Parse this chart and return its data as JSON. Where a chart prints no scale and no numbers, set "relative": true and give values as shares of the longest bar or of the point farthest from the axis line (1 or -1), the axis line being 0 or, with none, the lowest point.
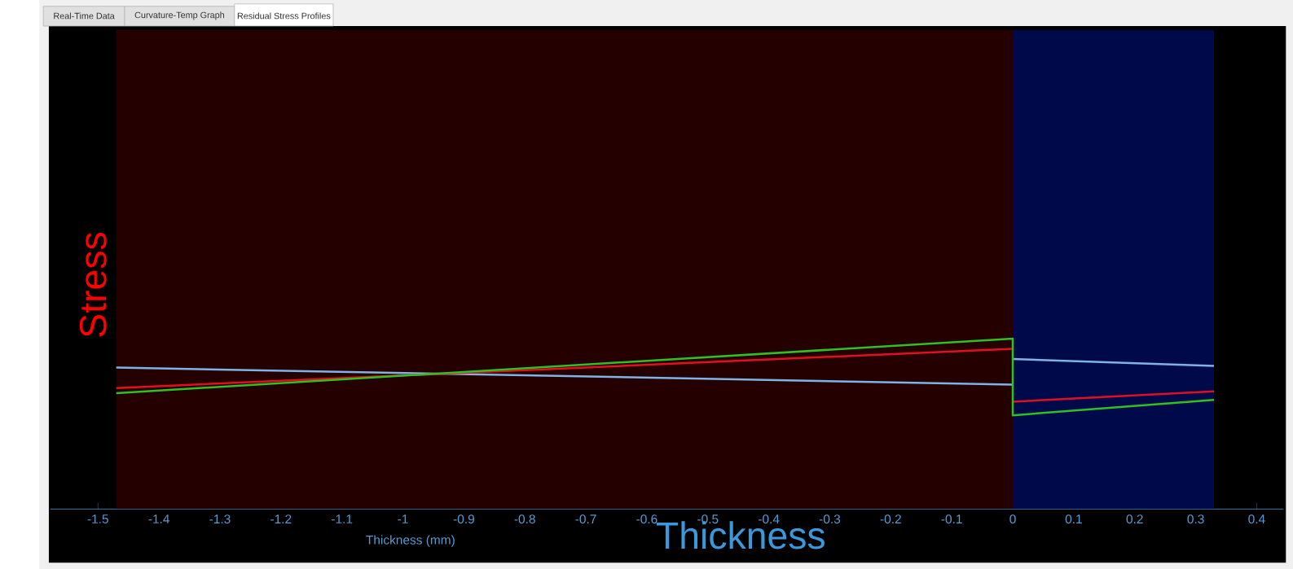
{
  "chart_data": {
    "type": "line",
    "xlabel": "Thickness (mm)",
    "ylabel": "Stress",
    "annotations": [
      "Real-Time Data",
      "Curvature-Temp Graph",
      "Residual Stress Profiles",
      "Thickness"
    ],
    "relative": true,
    "xlim": [
      -1.578,
      0.444
    ],
    "xticks": [
      -1.5,
      -1.4,
      -1.3,
      -1.2,
      -1.1,
      -1,
      -0.9,
      -0.8,
      -0.7,
      -0.6,
      -0.5,
      -0.4,
      -0.3,
      -0.2,
      -0.1,
      0,
      0.1,
      0.2,
      0.3,
      0.4
    ],
    "bands": [
      {
        "axis": "x",
        "from": -1.47,
        "to": 0,
        "color": "#240000"
      },
      {
        "axis": "x",
        "from": 0,
        "to": 0.33,
        "color": "#000a4a"
      }
    ],
    "series": [
      {
        "color": "#7fb2e5",
        "x": [
          -1.47,
          0
        ],
        "values": [
          0.83,
          0.73
        ]
      },
      {
        "color": "#7fb2e5",
        "x": [
          0,
          0.33
        ],
        "values": [
          0.88,
          0.84
        ]
      },
      {
        "color": "#e01020",
        "x": [
          -1.47,
          0
        ],
        "values": [
          0.71,
          0.94
        ]
      },
      {
        "color": "#e01020",
        "x": [
          0,
          0.33
        ],
        "values": [
          0.63,
          0.69
        ]
      },
      {
        "color": "#30c020",
        "x": [
          -1.47,
          0,
          0,
          0.33
        ],
        "values": [
          0.68,
          1.0,
          0.55,
          0.64
        ]
      }
    ]
  }
}
